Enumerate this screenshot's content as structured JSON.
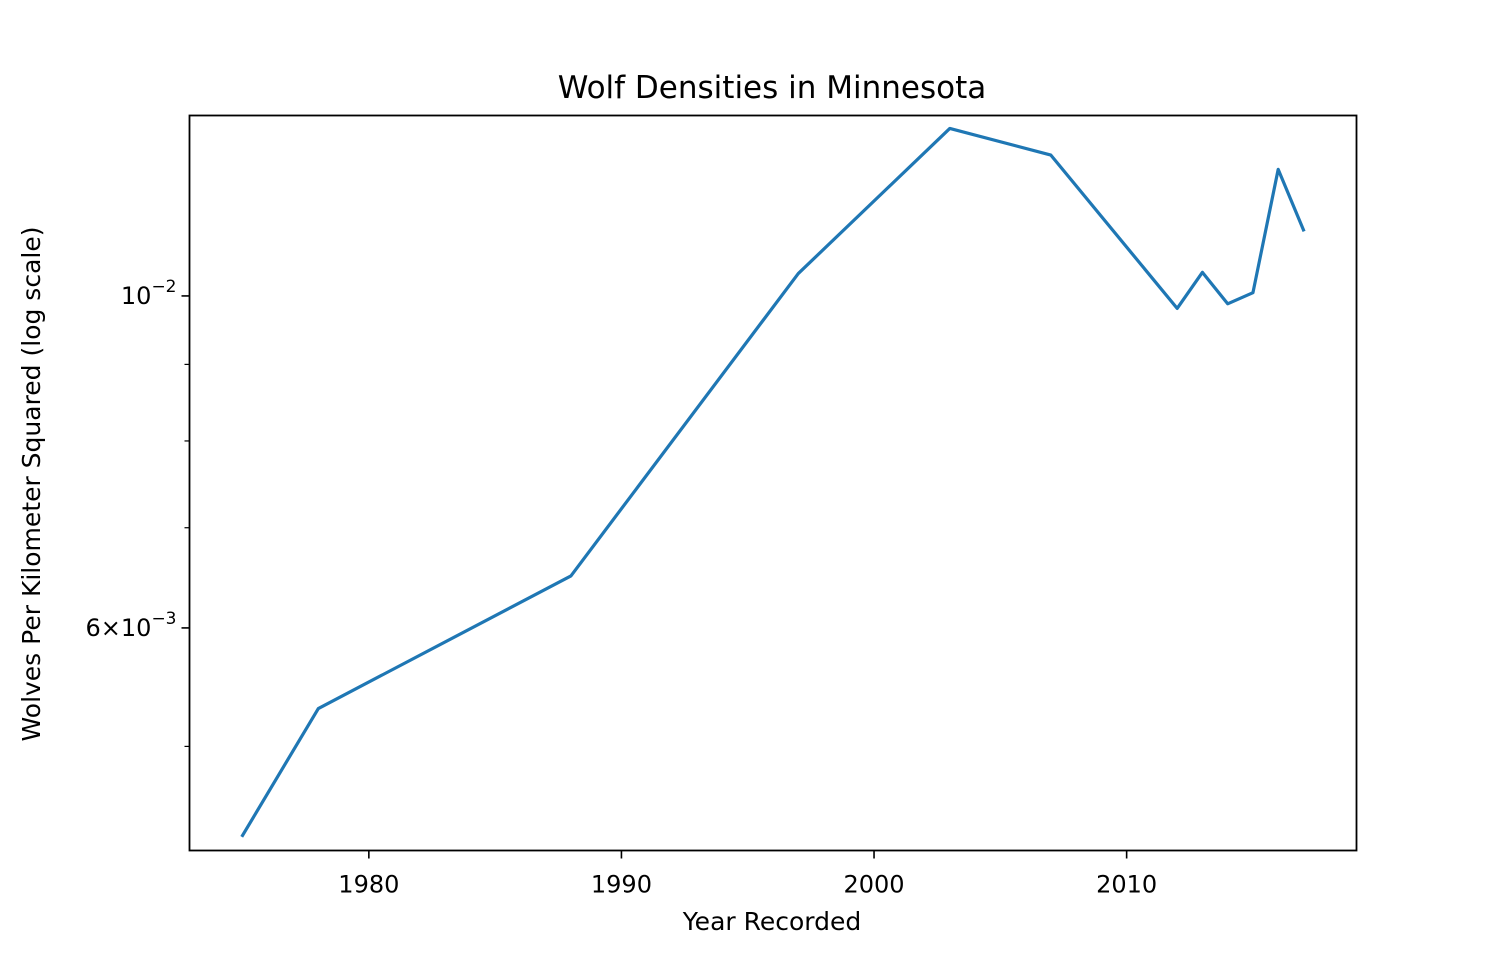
{
  "chart_data": {
    "type": "line",
    "title": "Wolf Densities in Minnesota",
    "xlabel": "Year Recorded",
    "ylabel": "Wolves Per Kilometer Squared (log scale)",
    "yscale": "log",
    "xlim": [
      1972.9,
      2019.1
    ],
    "ylim": [
      0.00426,
      0.0132
    ],
    "grid": false,
    "x_ticks": [
      {
        "value": 1980,
        "label": "1980"
      },
      {
        "value": 1990,
        "label": "1990"
      },
      {
        "value": 2000,
        "label": "2000"
      },
      {
        "value": 2010,
        "label": "2010"
      }
    ],
    "y_major_ticks": [
      {
        "value": 0.006,
        "base": "6×10",
        "exp": "−3"
      },
      {
        "value": 0.01,
        "base": "10",
        "exp": "−2"
      }
    ],
    "y_minor_ticks": [
      0.005,
      0.007,
      0.008,
      0.009
    ],
    "series": [
      {
        "color": "#1f77b4",
        "x": [
          1975,
          1978,
          1988,
          1997,
          2003,
          2007,
          2012,
          2013,
          2014,
          2015,
          2016,
          2017
        ],
        "y": [
          0.00436,
          0.0053,
          0.0065,
          0.01035,
          0.01294,
          0.01242,
          0.00981,
          0.01037,
          0.00988,
          0.01005,
          0.01215,
          0.01107
        ]
      }
    ]
  }
}
